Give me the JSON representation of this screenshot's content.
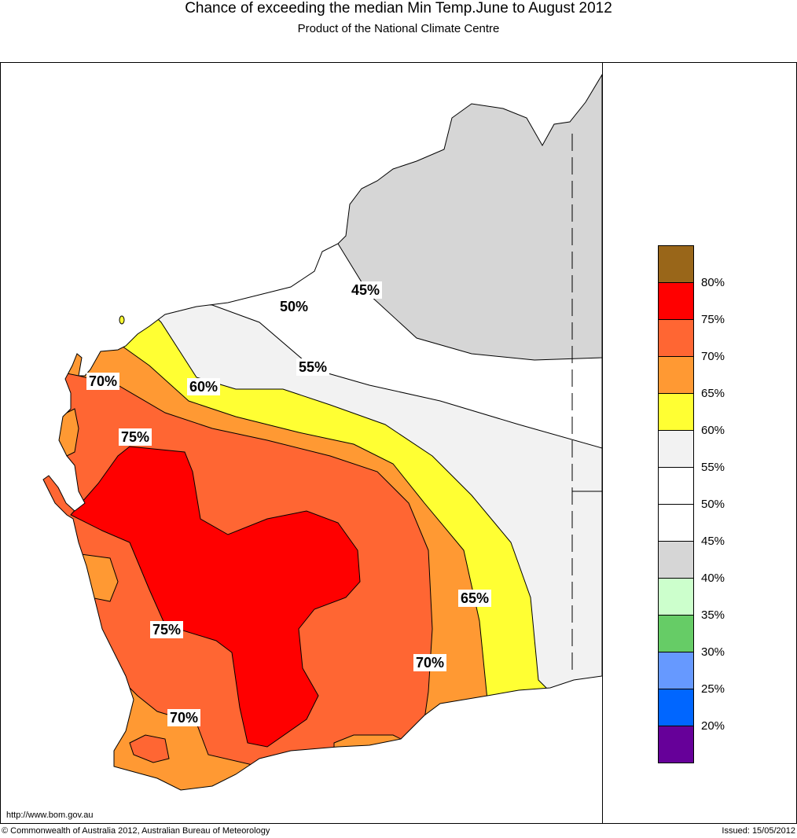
{
  "header": {
    "title": "Chance of exceeding the median Min Temp.June to August 2012",
    "subtitle": "Product of the National Climate Centre"
  },
  "map_labels": [
    "45%",
    "50%",
    "55%",
    "60%",
    "70%",
    "75%",
    "75%",
    "70%",
    "65%",
    "70%"
  ],
  "legend": {
    "colors": [
      "#996619",
      "#ff0000",
      "#ff6633",
      "#ff9933",
      "#ffff33",
      "#f2f2f2",
      "#ffffff",
      "#ffffff",
      "#d6d6d6",
      "#ccffcc",
      "#66cc66",
      "#6699ff",
      "#0066ff",
      "#660099"
    ],
    "ticks": [
      "80%",
      "75%",
      "70%",
      "65%",
      "60%",
      "55%",
      "50%",
      "45%",
      "40%",
      "35%",
      "30%",
      "25%",
      "20%"
    ]
  },
  "footer": {
    "url": "http://www.bom.gov.au",
    "copyright": "© Commonwealth of Australia 2012, Australian Bureau of Meteorology",
    "issued": "Issued: 15/05/2012"
  }
}
